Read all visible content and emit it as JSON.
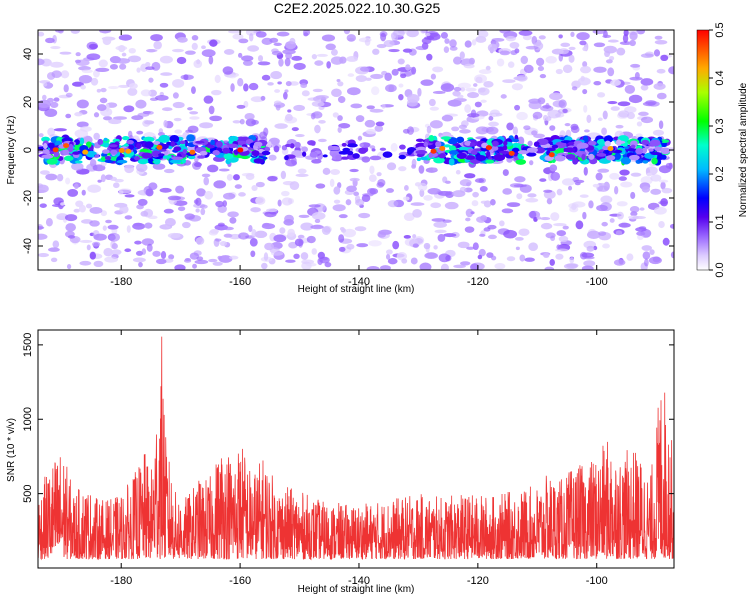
{
  "title": "C2E2.2025.022.10.30.G25",
  "chart_data": [
    {
      "type": "heatmap",
      "xlabel": "Height of straight line (km)",
      "ylabel": "Frequency (Hz)",
      "xlim": [
        -194,
        -87
      ],
      "ylim": [
        -50,
        50
      ],
      "xticks": [
        -180,
        -160,
        -140,
        -120,
        -100
      ],
      "yticks": [
        -40,
        -20,
        0,
        20,
        40
      ],
      "colorbar": {
        "label": "Normalized spectral amplitude",
        "range": [
          0,
          0.5
        ],
        "ticks": [
          "0.0",
          "0.1",
          "0.2",
          "0.3",
          "0.4",
          "0.5"
        ]
      },
      "description_band": {
        "center_frequency_hz": 0,
        "half_width_hz": 5,
        "strong_segments_km": [
          [
            -193,
            -185
          ],
          [
            -183,
            -168
          ],
          [
            -166,
            -156
          ],
          [
            -130,
            -112
          ],
          [
            -109,
            -88
          ]
        ]
      }
    },
    {
      "type": "line",
      "xlabel": "Height of straight line (km)",
      "ylabel": "SNR (10 * v/v)",
      "xlim": [
        -194,
        -87
      ],
      "ylim": [
        0,
        1600
      ],
      "xticks": [
        -180,
        -160,
        -140,
        -120,
        -100
      ],
      "yticks": [
        500,
        1000,
        1500
      ],
      "color": "#ee3333",
      "envelope": [
        {
          "x": -194,
          "y": 500
        },
        {
          "x": -192,
          "y": 700
        },
        {
          "x": -190,
          "y": 820
        },
        {
          "x": -188,
          "y": 520
        },
        {
          "x": -186,
          "y": 560
        },
        {
          "x": -184,
          "y": 470
        },
        {
          "x": -182,
          "y": 460
        },
        {
          "x": -180,
          "y": 500
        },
        {
          "x": -178,
          "y": 620
        },
        {
          "x": -176,
          "y": 780
        },
        {
          "x": -175,
          "y": 640
        },
        {
          "x": -174,
          "y": 1150
        },
        {
          "x": -173.2,
          "y": 1600
        },
        {
          "x": -172.5,
          "y": 880
        },
        {
          "x": -171,
          "y": 520
        },
        {
          "x": -169,
          "y": 480
        },
        {
          "x": -167,
          "y": 600
        },
        {
          "x": -165,
          "y": 620
        },
        {
          "x": -163,
          "y": 860
        },
        {
          "x": -161,
          "y": 760
        },
        {
          "x": -160,
          "y": 890
        },
        {
          "x": -158,
          "y": 640
        },
        {
          "x": -156,
          "y": 760
        },
        {
          "x": -154,
          "y": 580
        },
        {
          "x": -150,
          "y": 520
        },
        {
          "x": -146,
          "y": 450
        },
        {
          "x": -142,
          "y": 430
        },
        {
          "x": -138,
          "y": 440
        },
        {
          "x": -134,
          "y": 470
        },
        {
          "x": -130,
          "y": 500
        },
        {
          "x": -126,
          "y": 480
        },
        {
          "x": -122,
          "y": 500
        },
        {
          "x": -118,
          "y": 490
        },
        {
          "x": -114,
          "y": 520
        },
        {
          "x": -110,
          "y": 560
        },
        {
          "x": -108,
          "y": 640
        },
        {
          "x": -106,
          "y": 600
        },
        {
          "x": -104,
          "y": 680
        },
        {
          "x": -102,
          "y": 700
        },
        {
          "x": -100,
          "y": 760
        },
        {
          "x": -98,
          "y": 880
        },
        {
          "x": -96,
          "y": 760
        },
        {
          "x": -94,
          "y": 820
        },
        {
          "x": -92,
          "y": 720
        },
        {
          "x": -91,
          "y": 600
        },
        {
          "x": -90,
          "y": 980
        },
        {
          "x": -89,
          "y": 1350
        },
        {
          "x": -88,
          "y": 1100
        },
        {
          "x": -87,
          "y": 720
        }
      ],
      "floor": 60
    }
  ]
}
